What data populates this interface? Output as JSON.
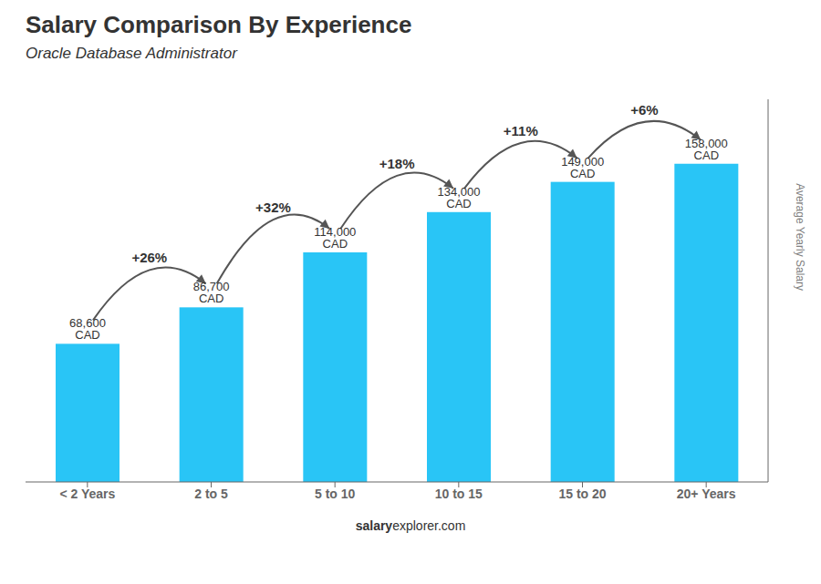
{
  "chart_data": {
    "type": "bar",
    "title": "Salary Comparison By Experience",
    "subtitle": "Oracle Database Administrator",
    "categories": [
      "< 2 Years",
      "2 to 5",
      "5 to 10",
      "10 to 15",
      "15 to 20",
      "20+ Years"
    ],
    "values": [
      68600,
      86700,
      114000,
      134000,
      149000,
      158000
    ],
    "value_labels": [
      "68,600 CAD",
      "86,700 CAD",
      "114,000 CAD",
      "134,000 CAD",
      "149,000 CAD",
      "158,000 CAD"
    ],
    "data_labels": true,
    "color": "#29c5f6",
    "ylim": [
      0,
      190000
    ],
    "tick_labels": "x",
    "grid": false,
    "ylabel": "Average Yearly Salary",
    "annotations": [
      "+26%",
      "+32%",
      "+18%",
      "+11%",
      "+6%"
    ],
    "footer": [
      "salary",
      "explorer.com"
    ]
  }
}
